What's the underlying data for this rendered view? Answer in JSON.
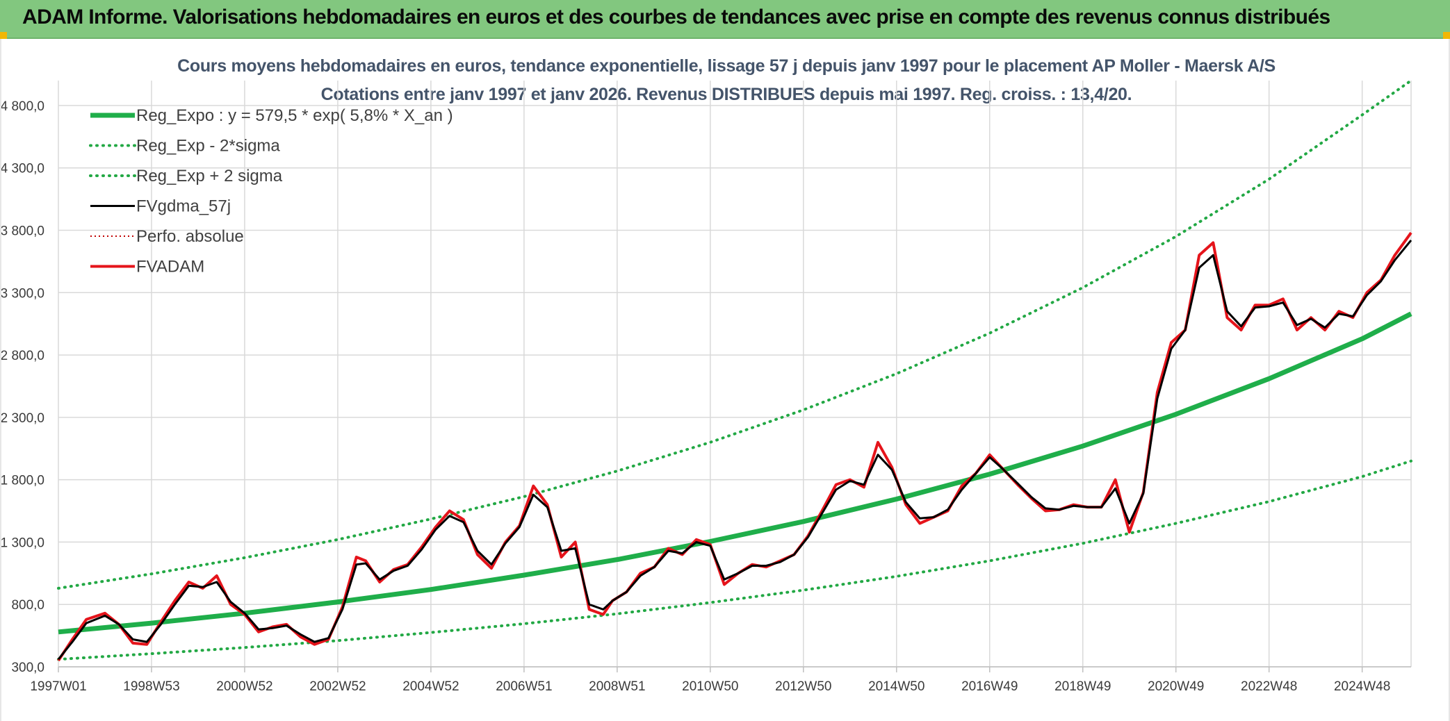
{
  "banner": {
    "title": "ADAM Informe. Valorisations hebdomadaires en euros et des courbes de tendances avec prise en compte des revenus connus distribués"
  },
  "colors": {
    "banner_bg": "#82c77f",
    "trend": "#1fae4a",
    "band": "#22a844",
    "smoothed": "#000000",
    "price": "#e5141b",
    "perf": "#c00000",
    "grid": "#d9d9d9",
    "title_text": "#44546a"
  },
  "chart_data": {
    "type": "line",
    "title_line1": "Cours moyens hebdomadaires en euros, tendance exponentielle, lissage 57 j depuis janv 1997 pour le placement AP Moller - Maersk A/S",
    "title_line2": "Cotations entre janv 1997 et janv 2026. Revenus DISTRIBUES depuis mai 1997. Reg. croiss. : 13,4/20.",
    "x_range": [
      1997.0,
      2026.05
    ],
    "ylim": [
      300,
      5000
    ],
    "y_ticks": [
      {
        "value": 300,
        "label": "300,0"
      },
      {
        "value": 800,
        "label": "800,0"
      },
      {
        "value": 1300,
        "label": "1 300,0"
      },
      {
        "value": 1800,
        "label": "1 800,0"
      },
      {
        "value": 2300,
        "label": "2 300,0"
      },
      {
        "value": 2800,
        "label": "2 800,0"
      },
      {
        "value": 3300,
        "label": "3 300,0"
      },
      {
        "value": 3800,
        "label": "3 800,0"
      },
      {
        "value": 4300,
        "label": "4 300,0"
      },
      {
        "value": 4800,
        "label": "4 800,0"
      }
    ],
    "x_ticks": [
      {
        "t": 1997.0,
        "label": "1997W01"
      },
      {
        "t": 1999.0,
        "label": "1998W53"
      },
      {
        "t": 2001.0,
        "label": "2000W52"
      },
      {
        "t": 2003.0,
        "label": "2002W52"
      },
      {
        "t": 2005.0,
        "label": "2004W52"
      },
      {
        "t": 2007.0,
        "label": "2006W51"
      },
      {
        "t": 2009.0,
        "label": "2008W51"
      },
      {
        "t": 2011.0,
        "label": "2010W50"
      },
      {
        "t": 2013.0,
        "label": "2012W50"
      },
      {
        "t": 2015.0,
        "label": "2014W50"
      },
      {
        "t": 2017.0,
        "label": "2016W49"
      },
      {
        "t": 2019.0,
        "label": "2018W49"
      },
      {
        "t": 2021.0,
        "label": "2020W49"
      },
      {
        "t": 2023.0,
        "label": "2022W48"
      },
      {
        "t": 2025.0,
        "label": "2024W48"
      }
    ],
    "grid": true,
    "legend_position": "top-left",
    "legend": [
      {
        "key": "trend",
        "label": "Reg_Expo : y = 579,5 * exp( 5,8% *  X_an )",
        "style": "solid-thick"
      },
      {
        "key": "lower",
        "label": "Reg_Exp - 2*sigma",
        "style": "dotted"
      },
      {
        "key": "upper",
        "label": "Reg_Exp + 2 sigma",
        "style": "dotted"
      },
      {
        "key": "smoothed",
        "label": "FVgdma_57j",
        "style": "solid"
      },
      {
        "key": "perf",
        "label": "Perfo. absolue",
        "style": "dotted-red"
      },
      {
        "key": "price",
        "label": "FVADAM",
        "style": "solid-thick-red"
      }
    ],
    "series": [
      {
        "key": "trend",
        "name": "Reg_Expo : y = 579,5 * exp( 5,8% *  X_an )",
        "x": [
          1997.0,
          1999.0,
          2001.0,
          2003.0,
          2005.0,
          2007.0,
          2009.0,
          2011.0,
          2013.0,
          2015.0,
          2017.0,
          2019.0,
          2021.0,
          2023.0,
          2025.0,
          2026.05
        ],
        "y": [
          579.5,
          650,
          730,
          820,
          920,
          1035,
          1160,
          1305,
          1465,
          1645,
          1845,
          2070,
          2325,
          2610,
          2930,
          3130
        ]
      },
      {
        "key": "lower",
        "name": "Reg_Exp - 2*sigma",
        "x": [
          1997.0,
          1999.0,
          2001.0,
          2003.0,
          2005.0,
          2007.0,
          2009.0,
          2011.0,
          2013.0,
          2015.0,
          2017.0,
          2019.0,
          2021.0,
          2023.0,
          2025.0,
          2026.05
        ],
        "y": [
          360,
          405,
          455,
          510,
          575,
          645,
          725,
          815,
          915,
          1025,
          1150,
          1290,
          1450,
          1625,
          1825,
          1950
        ]
      },
      {
        "key": "upper",
        "name": "Reg_Exp + 2 sigma",
        "x": [
          1997.0,
          1999.0,
          2001.0,
          2003.0,
          2005.0,
          2007.0,
          2009.0,
          2011.0,
          2013.0,
          2015.0,
          2017.0,
          2019.0,
          2021.0,
          2023.0,
          2025.0,
          2026.05
        ],
        "y": [
          930,
          1045,
          1175,
          1320,
          1485,
          1665,
          1870,
          2100,
          2360,
          2650,
          2975,
          3340,
          3750,
          4210,
          4725,
          5000
        ]
      },
      {
        "key": "price",
        "name": "FVADAM",
        "x": [
          1997.0,
          1997.3,
          1997.6,
          1998.0,
          1998.3,
          1998.6,
          1998.9,
          1999.2,
          1999.5,
          1999.8,
          2000.1,
          2000.4,
          2000.7,
          2001.0,
          2001.3,
          2001.6,
          2001.9,
          2002.2,
          2002.5,
          2002.8,
          2003.1,
          2003.4,
          2003.6,
          2003.9,
          2004.2,
          2004.5,
          2004.8,
          2005.1,
          2005.4,
          2005.7,
          2006.0,
          2006.3,
          2006.6,
          2006.9,
          2007.2,
          2007.5,
          2007.8,
          2008.1,
          2008.4,
          2008.7,
          2008.9,
          2009.2,
          2009.5,
          2009.8,
          2010.1,
          2010.4,
          2010.7,
          2011.0,
          2011.3,
          2011.6,
          2011.9,
          2012.2,
          2012.5,
          2012.8,
          2013.1,
          2013.4,
          2013.7,
          2014.0,
          2014.3,
          2014.6,
          2014.9,
          2015.2,
          2015.5,
          2015.8,
          2016.1,
          2016.4,
          2016.7,
          2017.0,
          2017.3,
          2017.6,
          2017.9,
          2018.2,
          2018.5,
          2018.8,
          2019.1,
          2019.4,
          2019.7,
          2020.0,
          2020.3,
          2020.6,
          2020.9,
          2021.2,
          2021.5,
          2021.8,
          2022.1,
          2022.4,
          2022.7,
          2023.0,
          2023.3,
          2023.6,
          2023.9,
          2024.2,
          2024.5,
          2024.8,
          2025.1,
          2025.4,
          2025.7,
          2026.05
        ],
        "y": [
          350,
          520,
          680,
          730,
          640,
          490,
          480,
          660,
          830,
          980,
          930,
          1030,
          800,
          720,
          580,
          620,
          640,
          540,
          480,
          520,
          780,
          1180,
          1150,
          980,
          1080,
          1120,
          1260,
          1420,
          1550,
          1480,
          1200,
          1090,
          1300,
          1430,
          1750,
          1600,
          1180,
          1300,
          760,
          720,
          830,
          900,
          1050,
          1100,
          1250,
          1200,
          1320,
          1280,
          960,
          1050,
          1120,
          1100,
          1150,
          1200,
          1350,
          1550,
          1760,
          1800,
          1740,
          2100,
          1900,
          1600,
          1450,
          1500,
          1550,
          1750,
          1850,
          2000,
          1880,
          1760,
          1650,
          1550,
          1560,
          1600,
          1580,
          1580,
          1800,
          1380,
          1700,
          2500,
          2900,
          3000,
          3600,
          3700,
          3100,
          3000,
          3200,
          3200,
          3250,
          3000,
          3100,
          3000,
          3150,
          3100,
          3300,
          3400,
          3600,
          3780
        ]
      },
      {
        "key": "smoothed",
        "name": "FVgdma_57j",
        "x": [
          1997.0,
          1997.3,
          1997.6,
          1998.0,
          1998.3,
          1998.6,
          1998.9,
          1999.2,
          1999.5,
          1999.8,
          2000.1,
          2000.4,
          2000.7,
          2001.0,
          2001.3,
          2001.6,
          2001.9,
          2002.2,
          2002.5,
          2002.8,
          2003.1,
          2003.4,
          2003.6,
          2003.9,
          2004.2,
          2004.5,
          2004.8,
          2005.1,
          2005.4,
          2005.7,
          2006.0,
          2006.3,
          2006.6,
          2006.9,
          2007.2,
          2007.5,
          2007.8,
          2008.1,
          2008.4,
          2008.7,
          2008.9,
          2009.2,
          2009.5,
          2009.8,
          2010.1,
          2010.4,
          2010.7,
          2011.0,
          2011.3,
          2011.6,
          2011.9,
          2012.2,
          2012.5,
          2012.8,
          2013.1,
          2013.4,
          2013.7,
          2014.0,
          2014.3,
          2014.6,
          2014.9,
          2015.2,
          2015.5,
          2015.8,
          2016.1,
          2016.4,
          2016.7,
          2017.0,
          2017.3,
          2017.6,
          2017.9,
          2018.2,
          2018.5,
          2018.8,
          2019.1,
          2019.4,
          2019.7,
          2020.0,
          2020.3,
          2020.6,
          2020.9,
          2021.2,
          2021.5,
          2021.8,
          2022.1,
          2022.4,
          2022.7,
          2023.0,
          2023.3,
          2023.6,
          2023.9,
          2024.2,
          2024.5,
          2024.8,
          2025.1,
          2025.4,
          2025.7,
          2026.05
        ],
        "y": [
          360,
          500,
          650,
          710,
          640,
          520,
          500,
          640,
          800,
          950,
          940,
          980,
          820,
          730,
          600,
          610,
          630,
          560,
          500,
          530,
          760,
          1120,
          1130,
          1000,
          1070,
          1110,
          1240,
          1400,
          1510,
          1460,
          1230,
          1120,
          1290,
          1420,
          1680,
          1580,
          1230,
          1250,
          800,
          760,
          830,
          900,
          1030,
          1100,
          1230,
          1210,
          1300,
          1270,
          1000,
          1050,
          1110,
          1110,
          1140,
          1200,
          1340,
          1530,
          1720,
          1790,
          1760,
          2000,
          1880,
          1620,
          1490,
          1500,
          1560,
          1720,
          1850,
          1980,
          1880,
          1770,
          1660,
          1570,
          1560,
          1590,
          1580,
          1580,
          1730,
          1450,
          1690,
          2450,
          2850,
          3000,
          3500,
          3600,
          3150,
          3030,
          3180,
          3190,
          3220,
          3040,
          3090,
          3020,
          3130,
          3110,
          3280,
          3390,
          3560,
          3720
        ]
      }
    ]
  }
}
